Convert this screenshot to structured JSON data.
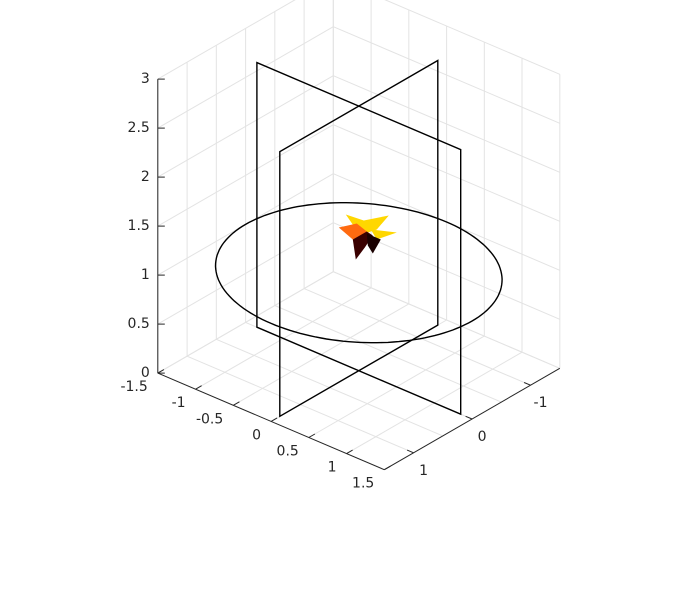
{
  "chart_data": {
    "type": "3d-line",
    "title": "",
    "xlabel": "",
    "ylabel": "",
    "zlabel": "",
    "grid": true,
    "box": "open",
    "xlim": [
      -1.5,
      1.5
    ],
    "ylim": [
      -1.5,
      1.5
    ],
    "zlim": [
      0,
      3
    ],
    "x_ticks": [
      -1,
      0,
      1
    ],
    "x_tick_labels": [
      "-1",
      "0",
      "1"
    ],
    "y_ticks": [
      -1.5,
      -1,
      -0.5,
      0,
      0.5,
      1,
      1.5
    ],
    "y_tick_labels": [
      "-1.5",
      "-1",
      "-0.5",
      "0",
      "0.5",
      "1",
      "1.5"
    ],
    "z_ticks": [
      0,
      0.5,
      1,
      1.5,
      2,
      2.5,
      3
    ],
    "z_tick_labels": [
      "0",
      "0.5",
      "1",
      "1.5",
      "2",
      "2.5",
      "3"
    ],
    "circle": {
      "center": [
        0,
        0,
        1
      ],
      "radius": 1.5,
      "color": "#000000"
    },
    "frames": [
      {
        "name": "frame-xz",
        "corners": [
          [
            -1.35,
            0,
            0
          ],
          [
            1.35,
            0,
            0
          ],
          [
            1.35,
            0,
            2.7
          ],
          [
            -1.35,
            0,
            2.7
          ]
        ],
        "color": "#000000"
      },
      {
        "name": "frame-yz",
        "corners": [
          [
            0,
            -1.35,
            0
          ],
          [
            0,
            1.35,
            0
          ],
          [
            0,
            1.35,
            2.7
          ],
          [
            0,
            -1.35,
            2.7
          ]
        ],
        "color": "#000000"
      }
    ],
    "object": {
      "center": [
        0,
        0,
        1.38
      ],
      "colors": {
        "yellow": "#ffd700",
        "orange": "#ff6a10",
        "dark": "#3a0000",
        "darkest": "#1a0000"
      }
    }
  }
}
